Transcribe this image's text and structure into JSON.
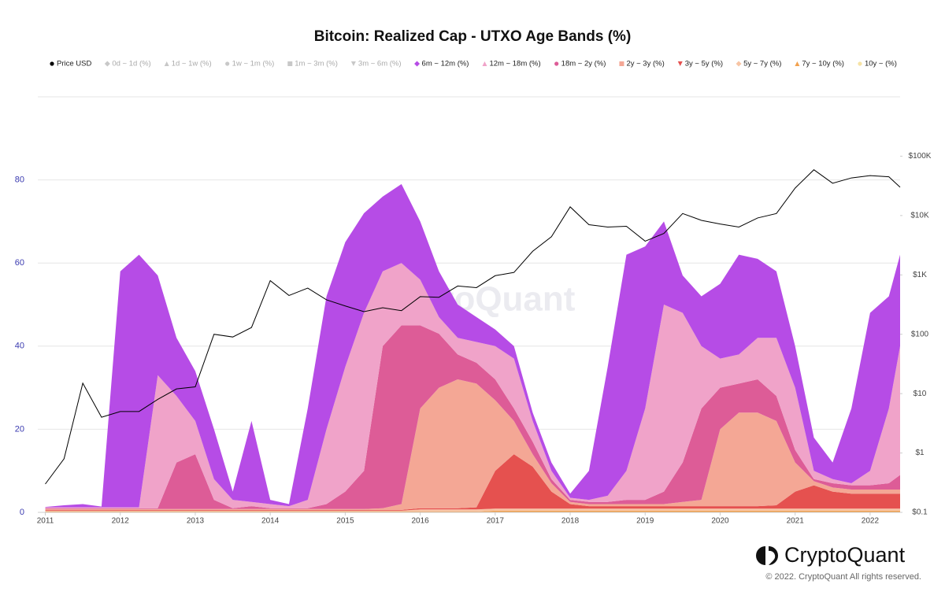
{
  "chart_data": {
    "type": "stacked_area",
    "title": "Bitcoin: Realized Cap - UTXO Age Bands (%)",
    "watermark": "CryptoQuant",
    "logo": "CryptoQuant",
    "copyright": "© 2022. CryptoQuant All rights reserved.",
    "x": [
      2011,
      2011.25,
      2011.5,
      2011.75,
      2012,
      2012.25,
      2012.5,
      2012.75,
      2013,
      2013.25,
      2013.5,
      2013.75,
      2014,
      2014.25,
      2014.5,
      2014.75,
      2015,
      2015.25,
      2015.5,
      2015.75,
      2016,
      2016.25,
      2016.5,
      2016.75,
      2017,
      2017.25,
      2017.5,
      2017.75,
      2018,
      2018.25,
      2018.5,
      2018.75,
      2019,
      2019.25,
      2019.5,
      2019.75,
      2020,
      2020.25,
      2020.5,
      2020.75,
      2021,
      2021.25,
      2021.5,
      2021.75,
      2022,
      2022.25,
      2022.4
    ],
    "xlim": [
      2010.9,
      2022.4
    ],
    "xticks": [
      2011,
      2012,
      2013,
      2014,
      2015,
      2016,
      2017,
      2018,
      2019,
      2020,
      2021,
      2022
    ],
    "ylim": [
      0,
      100
    ],
    "yticks": [
      0,
      20,
      40,
      60,
      80
    ],
    "y2lim": [
      0.1,
      1000000
    ],
    "y2_log": true,
    "y2ticks": [
      {
        "value": 0.1,
        "label": "$0.1"
      },
      {
        "value": 1,
        "label": "$1"
      },
      {
        "value": 10,
        "label": "$10"
      },
      {
        "value": 100,
        "label": "$100"
      },
      {
        "value": 1000,
        "label": "$1K"
      },
      {
        "value": 10000,
        "label": "$10K"
      },
      {
        "value": 100000,
        "label": "$100K"
      }
    ],
    "grid": true,
    "legend": "top",
    "series": [
      {
        "name": "Price USD",
        "color": "#000000",
        "marker": "circle",
        "axis": "y2",
        "type": "line",
        "values": [
          0.3,
          0.8,
          15,
          4,
          5,
          5,
          8,
          12,
          13,
          100,
          90,
          130,
          800,
          450,
          600,
          380,
          300,
          240,
          280,
          250,
          430,
          420,
          650,
          610,
          970,
          1100,
          2500,
          4400,
          14000,
          7000,
          6400,
          6600,
          3700,
          5000,
          10800,
          8300,
          7200,
          6400,
          9100,
          10800,
          29000,
          59000,
          35000,
          43000,
          47000,
          45000,
          30000
        ]
      },
      {
        "name": "0d ~ 1d (%)",
        "color": "#aaaaaa",
        "marker": "diamond",
        "visible": false
      },
      {
        "name": "1d ~ 1w (%)",
        "color": "#aaaaaa",
        "marker": "triangle",
        "visible": false
      },
      {
        "name": "1w ~ 1m (%)",
        "color": "#aaaaaa",
        "marker": "circle",
        "visible": false
      },
      {
        "name": "1m ~ 3m (%)",
        "color": "#aaaaaa",
        "marker": "square",
        "visible": false
      },
      {
        "name": "3m ~ 6m (%)",
        "color": "#aaaaaa",
        "marker": "triangle-down",
        "visible": false
      },
      {
        "name": "6m ~ 12m (%)",
        "color": "#b64ce6",
        "marker": "diamond",
        "values": [
          0.1,
          0.5,
          0.8,
          0.2,
          56.8,
          60.8,
          24,
          14,
          12,
          12,
          2,
          19.5,
          1,
          0.5,
          22,
          32,
          30,
          24,
          18,
          19,
          14,
          11,
          8,
          6,
          4,
          3,
          2,
          2,
          1,
          7,
          31,
          52,
          39,
          20,
          9,
          12,
          18,
          24,
          19,
          16,
          10,
          8,
          4,
          18,
          38,
          27,
          22
        ]
      },
      {
        "name": "12m ~ 18m (%)",
        "color": "#f0a3c9",
        "marker": "triangle",
        "values": [
          0.2,
          0.2,
          0.2,
          0.2,
          0.2,
          0.2,
          32,
          16,
          8,
          5,
          2,
          1,
          1,
          0.5,
          2,
          18,
          30,
          38,
          18,
          15,
          11,
          4,
          4,
          5,
          8,
          12,
          5,
          2,
          0.5,
          0.5,
          1.5,
          7,
          22,
          45,
          36,
          15,
          7,
          7,
          10,
          14,
          15,
          2,
          1,
          0.5,
          3.5,
          18,
          31
        ]
      },
      {
        "name": "18m ~ 2y (%)",
        "color": "#dd5c97",
        "marker": "circle",
        "values": [
          0.2,
          0.2,
          0.2,
          0.2,
          0.2,
          0.2,
          0.2,
          11.2,
          13.2,
          2.2,
          0.2,
          0.7,
          0.2,
          0.2,
          0.2,
          1.2,
          4.2,
          9.2,
          39,
          43,
          20,
          13,
          6,
          5,
          5,
          3,
          3,
          1,
          0.5,
          0.5,
          0.5,
          1,
          1,
          3,
          9.5,
          22,
          10,
          7,
          8,
          6,
          3,
          0.5,
          1,
          1,
          1,
          1.5,
          3.5
        ]
      },
      {
        "name": "2y ~ 3y (%)",
        "color": "#f4a795",
        "marker": "square",
        "values": [
          0.2,
          0.2,
          0.2,
          0.2,
          0.2,
          0.2,
          0.2,
          0.2,
          0.2,
          0.2,
          0.2,
          0.2,
          0.2,
          0.2,
          0.2,
          0.2,
          0.2,
          0.2,
          0.4,
          1.4,
          24,
          29,
          31,
          29.8,
          17,
          8,
          3,
          2,
          0.5,
          0.5,
          0.5,
          0.5,
          0.5,
          0.5,
          1,
          1.5,
          18.5,
          22.5,
          22.5,
          20.3,
          7,
          1,
          1,
          1,
          1,
          1,
          1
        ]
      },
      {
        "name": "3y ~ 5y (%)",
        "color": "#e5514f",
        "marker": "triangle-down",
        "values": [
          0.2,
          0.2,
          0.2,
          0.2,
          0.2,
          0.2,
          0.2,
          0.2,
          0.2,
          0.2,
          0.2,
          0.2,
          0.2,
          0.2,
          0.2,
          0.2,
          0.2,
          0.2,
          0.2,
          0.2,
          0.3,
          0.3,
          0.3,
          0.5,
          9.1,
          13.1,
          10.1,
          4.1,
          1.1,
          0.6,
          0.6,
          0.6,
          0.6,
          0.6,
          0.6,
          0.6,
          0.6,
          0.6,
          0.6,
          0.8,
          4.1,
          5.6,
          4.1,
          3.6,
          3.6,
          3.6,
          3.6
        ]
      },
      {
        "name": "5y ~ 7y (%)",
        "color": "#f7c4a4",
        "marker": "diamond",
        "values": [
          0.2,
          0.2,
          0.2,
          0.2,
          0.2,
          0.2,
          0.2,
          0.2,
          0.2,
          0.2,
          0.2,
          0.2,
          0.2,
          0.2,
          0.2,
          0.2,
          0.2,
          0.2,
          0.2,
          0.2,
          0.5,
          0.5,
          0.5,
          0.5,
          0.5,
          0.5,
          0.5,
          0.5,
          0.5,
          0.5,
          0.5,
          0.5,
          0.5,
          0.5,
          0.5,
          0.5,
          0.5,
          0.5,
          0.5,
          0.5,
          0.5,
          0.5,
          0.5,
          0.5,
          0.5,
          0.5,
          0.5
        ]
      },
      {
        "name": "7y ~ 10y (%)",
        "color": "#f2a14f",
        "marker": "triangle",
        "values": [
          0.1,
          0.1,
          0.1,
          0.1,
          0.1,
          0.1,
          0.1,
          0.1,
          0.1,
          0.1,
          0.1,
          0.1,
          0.1,
          0.1,
          0.1,
          0.1,
          0.1,
          0.1,
          0.1,
          0.1,
          0.1,
          0.1,
          0.1,
          0.1,
          0.3,
          0.3,
          0.3,
          0.3,
          0.3,
          0.3,
          0.3,
          0.3,
          0.3,
          0.3,
          0.3,
          0.3,
          0.3,
          0.3,
          0.3,
          0.3,
          0.3,
          0.3,
          0.3,
          0.3,
          0.3,
          0.3,
          0.3
        ]
      },
      {
        "name": "10y ~ (%)",
        "color": "#f6e3a5",
        "marker": "circle",
        "values": [
          0.1,
          0.1,
          0.1,
          0.1,
          0.1,
          0.1,
          0.1,
          0.1,
          0.1,
          0.1,
          0.1,
          0.1,
          0.1,
          0.1,
          0.1,
          0.1,
          0.1,
          0.1,
          0.1,
          0.1,
          0.1,
          0.1,
          0.1,
          0.1,
          0.1,
          0.1,
          0.1,
          0.1,
          0.1,
          0.1,
          0.1,
          0.1,
          0.1,
          0.1,
          0.1,
          0.1,
          0.1,
          0.1,
          0.1,
          0.1,
          0.1,
          0.1,
          0.1,
          0.1,
          0.1,
          0.1,
          0.1
        ]
      }
    ]
  }
}
